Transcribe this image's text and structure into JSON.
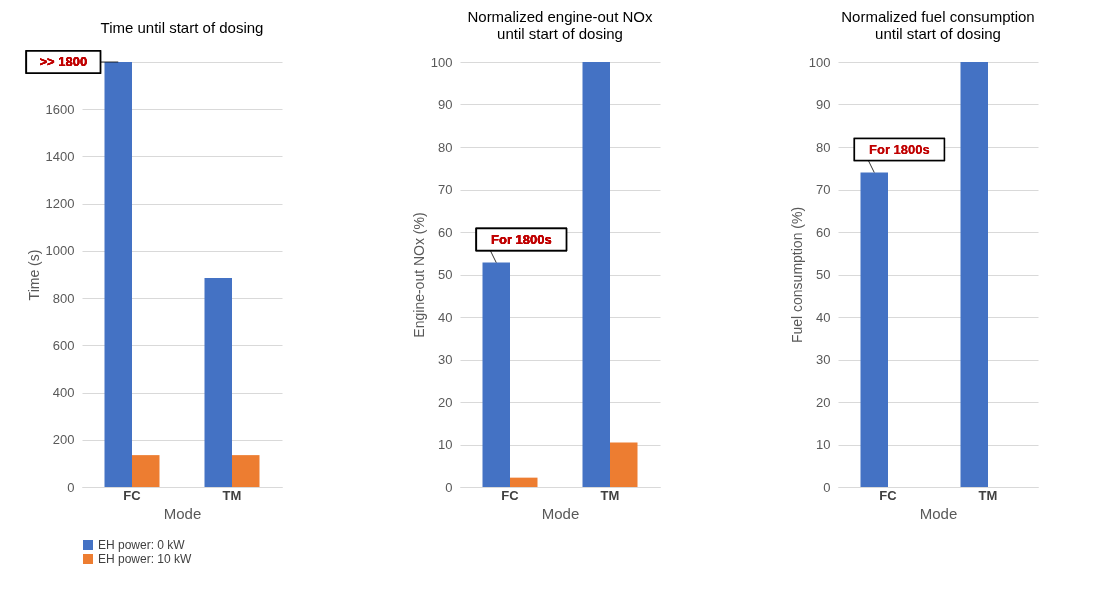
{
  "chart_data": [
    {
      "type": "bar",
      "title": "Time until start of dosing",
      "xlabel": "Mode",
      "ylabel": "Time (s)",
      "categories": [
        "FC",
        "TM"
      ],
      "series": [
        {
          "name": "EH power: 0 kW",
          "color": "#4472c4",
          "values": [
            1800,
            885
          ]
        },
        {
          "name": "EH power: 10 kW",
          "color": "#ed7d31",
          "values": [
            135,
            135
          ]
        }
      ],
      "ylim": [
        0,
        1800
      ],
      "yticks": [
        0,
        200,
        400,
        600,
        800,
        1000,
        1200,
        1400,
        1600,
        {
          "value": 1800,
          "label": null
        }
      ],
      "grid": "y",
      "legend": "bottom",
      "annotations": [
        ">> 1800"
      ]
    },
    {
      "type": "bar",
      "title": "Normalized engine-out NOx\nuntil start of dosing",
      "xlabel": "Mode",
      "ylabel": "Engine-out NOx (%)",
      "categories": [
        "FC",
        "TM"
      ],
      "series": [
        {
          "name": "EH power: 0 kW",
          "color": "#4472c4",
          "values": [
            52.8,
            100
          ]
        },
        {
          "name": "EH power: 10 kW",
          "color": "#ed7d31",
          "values": [
            2.2,
            10.5
          ]
        }
      ],
      "ylim": [
        0,
        100
      ],
      "yticks": [
        0,
        10,
        20,
        30,
        40,
        50,
        60,
        70,
        80,
        90,
        100
      ],
      "grid": "y",
      "legend": "bottom",
      "annotations": [
        {
          "text": "For 1800s",
          "x": "FC",
          "y": 52.8
        }
      ]
    },
    {
      "type": "bar",
      "title": "Normalized fuel consumption\nuntil start of dosing",
      "xlabel": "Mode",
      "ylabel": "Fuel consumption (%)",
      "categories": [
        "FC",
        "TM"
      ],
      "series": [
        {
          "name": "EH power: 0 kW",
          "color": "#4472c4",
          "values": [
            74,
            100
          ]
        }
      ],
      "ylim": [
        0,
        100
      ],
      "yticks": [
        0,
        10,
        20,
        30,
        40,
        50,
        60,
        70,
        80,
        90,
        100
      ],
      "grid": "y",
      "legend": "bottom",
      "annotations": [
        {
          "text": "For 1800s",
          "x": "FC",
          "y": 74
        }
      ]
    }
  ]
}
